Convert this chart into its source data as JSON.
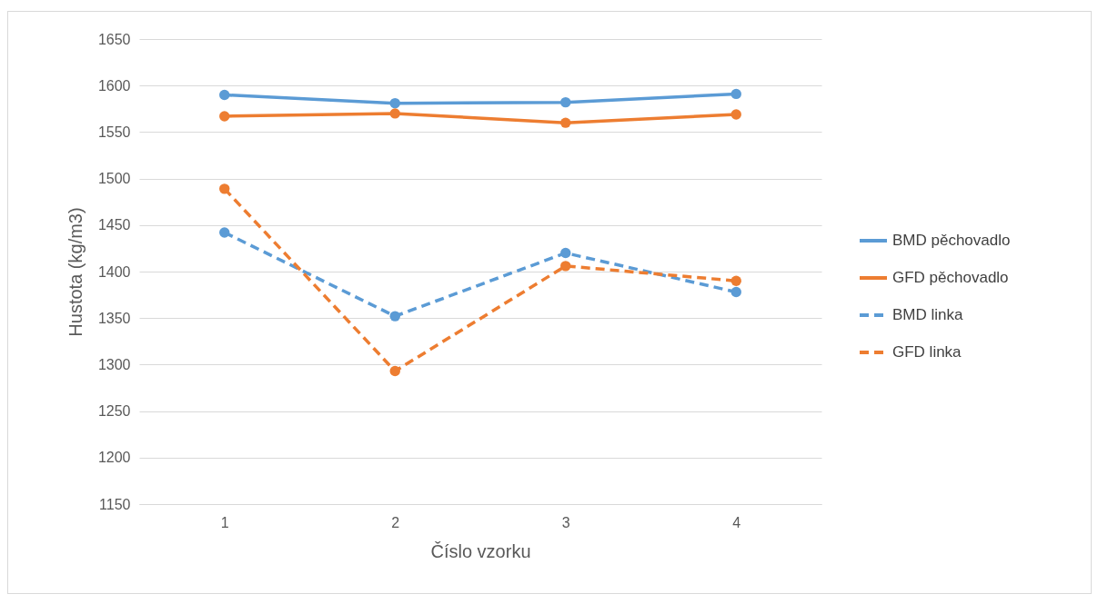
{
  "chart_data": {
    "type": "line",
    "xlabel": "Číslo vzorku",
    "ylabel": "Hustota (kg/m3)",
    "categories": [
      "1",
      "2",
      "3",
      "4"
    ],
    "ylim": [
      1150,
      1650
    ],
    "yticks": [
      1150,
      1200,
      1250,
      1300,
      1350,
      1400,
      1450,
      1500,
      1550,
      1600,
      1650
    ],
    "grid": "y",
    "legend": "right",
    "marker": "circle",
    "series": [
      {
        "name": "BMD pěchovadlo",
        "color": "#5b9bd5",
        "line_style": "solid",
        "values": [
          1590,
          1581,
          1582,
          1591
        ]
      },
      {
        "name": "GFD pěchovadlo",
        "color": "#ed7d31",
        "line_style": "solid",
        "values": [
          1567,
          1570,
          1560,
          1569
        ]
      },
      {
        "name": "BMD linka",
        "color": "#5b9bd5",
        "line_style": "dashed",
        "values": [
          1442,
          1352,
          1420,
          1378
        ]
      },
      {
        "name": "GFD linka",
        "color": "#ed7d31",
        "line_style": "dashed",
        "values": [
          1489,
          1293,
          1406,
          1390
        ]
      }
    ]
  }
}
